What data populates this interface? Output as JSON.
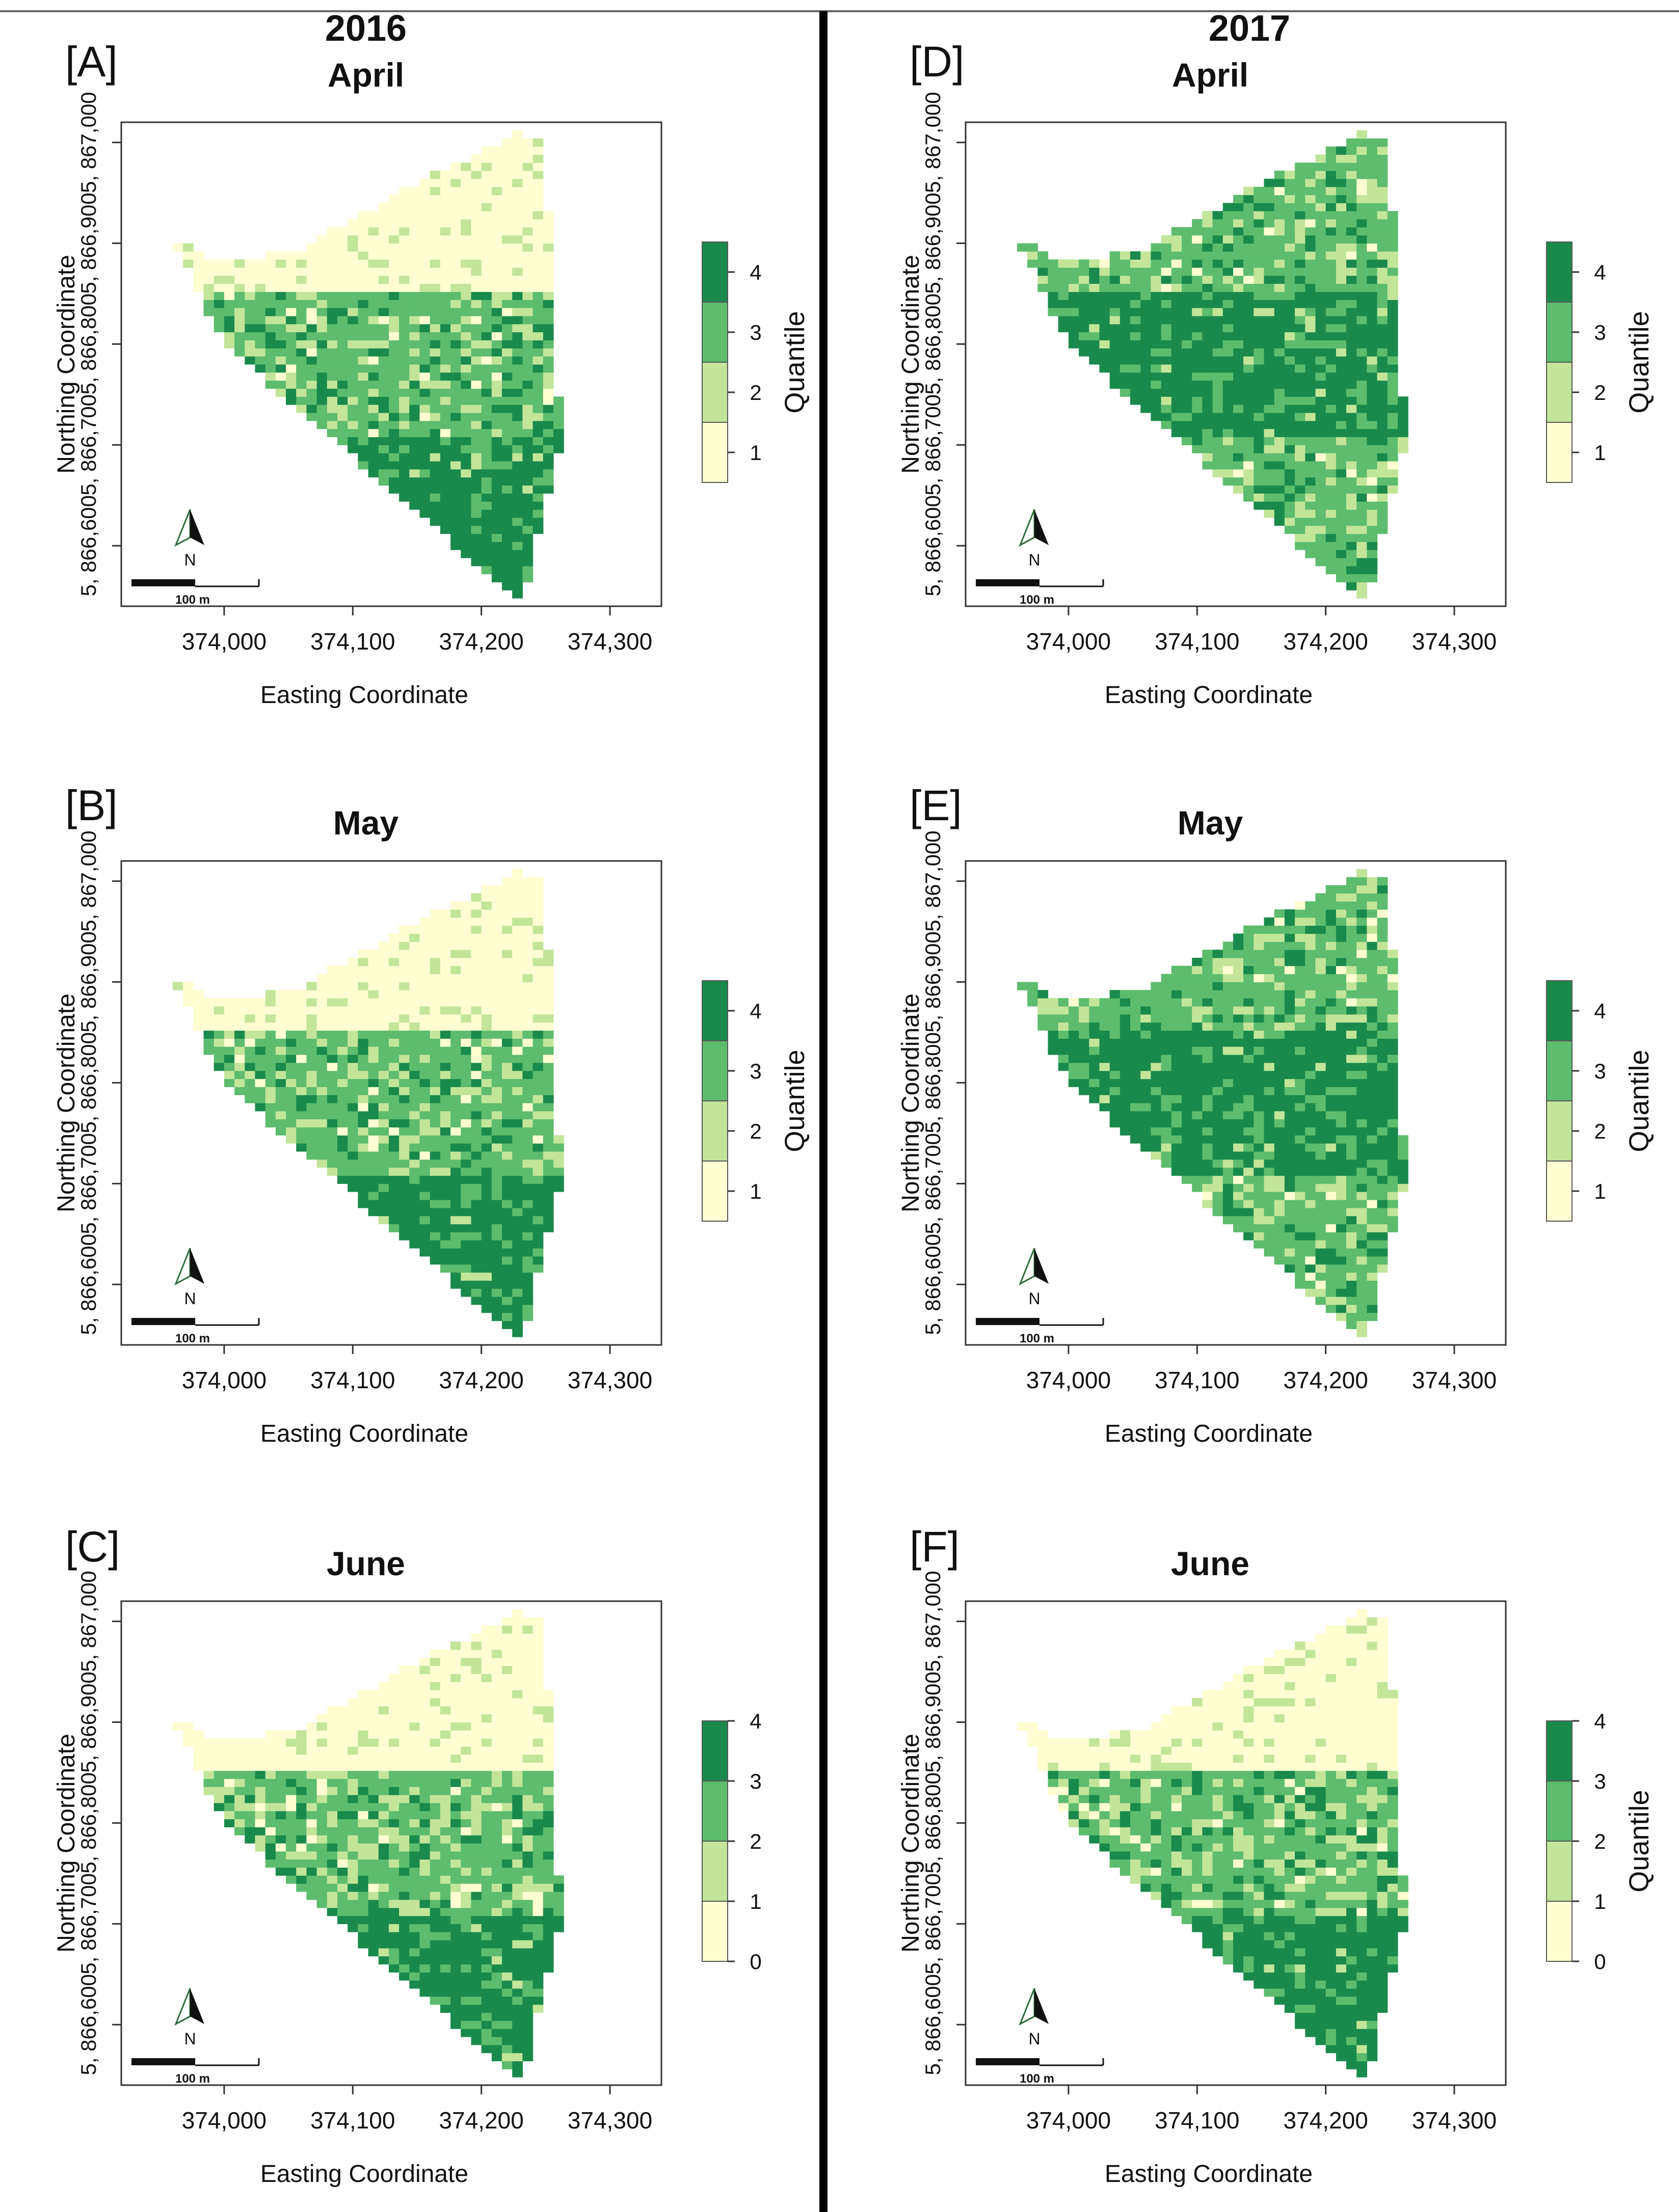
{
  "figure": {
    "years": [
      "2016",
      "2017"
    ],
    "palette": {
      "q1": "#fefed2",
      "q2": "#c2e59a",
      "q3": "#5dbc6e",
      "q4": "#1a8a4c",
      "frame": "#333333",
      "divider": "#000000"
    },
    "north_label": "N",
    "scalebar_label": "100 m"
  },
  "chart_data": [
    {
      "type": "heatmap",
      "panel": "[A]",
      "year": "2016",
      "month": "April",
      "xlabel": "Easting Coordinate",
      "ylabel": "Northing Coordinate",
      "xlim": [
        373920,
        374340
      ],
      "ylim": [
        5866540,
        5867020
      ],
      "x_ticks": [
        374000,
        374100,
        374200,
        374300
      ],
      "x_tick_labels": [
        "374,000",
        "374,100",
        "374,200",
        "374,300"
      ],
      "y_ticks": [
        5866600,
        5866700,
        5866800,
        5866900,
        5867000
      ],
      "y_tick_labels": [
        "5, 866,600",
        "5, 866,700",
        "5, 866,800",
        "5, 866,900",
        "5, 867,000"
      ],
      "legend_title": "Quantile",
      "legend_labels": [
        "1",
        "2",
        "3",
        "4"
      ],
      "dominant_quantile_by_region": {
        "north": 1,
        "middle": 3,
        "south": 4
      }
    },
    {
      "type": "heatmap",
      "panel": "[B]",
      "year": "2016",
      "month": "May",
      "xlabel": "Easting Coordinate",
      "ylabel": "Northing Coordinate",
      "xlim": [
        373920,
        374340
      ],
      "ylim": [
        5866540,
        5867020
      ],
      "x_ticks": [
        374000,
        374100,
        374200,
        374300
      ],
      "x_tick_labels": [
        "374,000",
        "374,100",
        "374,200",
        "374,300"
      ],
      "y_ticks": [
        5866600,
        5866700,
        5866800,
        5866900,
        5867000
      ],
      "y_tick_labels": [
        "5, 866,600",
        "5, 866,700",
        "5, 866,800",
        "5, 866,900",
        "5, 867,000"
      ],
      "legend_title": "Quantile",
      "legend_labels": [
        "1",
        "2",
        "3",
        "4"
      ],
      "dominant_quantile_by_region": {
        "north": 1,
        "middle": 3,
        "south": 4
      }
    },
    {
      "type": "heatmap",
      "panel": "[C]",
      "year": "2016",
      "month": "June",
      "xlabel": "Easting Coordinate",
      "ylabel": "Northing Coordinate",
      "xlim": [
        373920,
        374340
      ],
      "ylim": [
        5866540,
        5867020
      ],
      "x_ticks": [
        374000,
        374100,
        374200,
        374300
      ],
      "x_tick_labels": [
        "374,000",
        "374,100",
        "374,200",
        "374,300"
      ],
      "y_ticks": [
        5866600,
        5866700,
        5866800,
        5866900,
        5867000
      ],
      "y_tick_labels": [
        "5, 866,600",
        "5, 866,700",
        "5, 866,800",
        "5, 866,900",
        "5, 867,000"
      ],
      "legend_title": "",
      "legend_labels": [
        "0",
        "1",
        "2",
        "3",
        "4"
      ],
      "dominant_quantile_by_region": {
        "north": 1,
        "middle": 3,
        "south": 4
      }
    },
    {
      "type": "heatmap",
      "panel": "[D]",
      "year": "2017",
      "month": "April",
      "xlabel": "Easting Coordinate",
      "ylabel": "Northing Coordinate",
      "xlim": [
        373920,
        374340
      ],
      "ylim": [
        5866540,
        5867020
      ],
      "x_ticks": [
        374000,
        374100,
        374200,
        374300
      ],
      "x_tick_labels": [
        "374,000",
        "374,100",
        "374,200",
        "374,300"
      ],
      "y_ticks": [
        5866600,
        5866700,
        5866800,
        5866900,
        5867000
      ],
      "y_tick_labels": [
        "5, 866,600",
        "5, 866,700",
        "5, 866,800",
        "5, 866,900",
        "5, 867,000"
      ],
      "legend_title": "Quantile",
      "legend_labels": [
        "1",
        "2",
        "3",
        "4"
      ],
      "dominant_quantile_by_region": {
        "north": 3,
        "middle": 4,
        "south": 3
      }
    },
    {
      "type": "heatmap",
      "panel": "[E]",
      "year": "2017",
      "month": "May",
      "xlabel": "Easting Coordinate",
      "ylabel": "Northing Coordinate",
      "xlim": [
        373920,
        374340
      ],
      "ylim": [
        5866540,
        5867020
      ],
      "x_ticks": [
        374000,
        374100,
        374200,
        374300
      ],
      "x_tick_labels": [
        "374,000",
        "374,100",
        "374,200",
        "374,300"
      ],
      "y_ticks": [
        5866600,
        5866700,
        5866800,
        5866900,
        5867000
      ],
      "y_tick_labels": [
        "5, 866,600",
        "5, 866,700",
        "5, 866,800",
        "5, 866,900",
        "5, 867,000"
      ],
      "legend_title": "Quantile",
      "legend_labels": [
        "1",
        "2",
        "3",
        "4"
      ],
      "dominant_quantile_by_region": {
        "north": 3,
        "middle": 4,
        "south": 3
      }
    },
    {
      "type": "heatmap",
      "panel": "[F]",
      "year": "2017",
      "month": "June",
      "xlabel": "Easting Coordinate",
      "ylabel": "Northing Coordinate",
      "xlim": [
        373920,
        374340
      ],
      "ylim": [
        5866540,
        5867020
      ],
      "x_ticks": [
        374000,
        374100,
        374200,
        374300
      ],
      "x_tick_labels": [
        "374,000",
        "374,100",
        "374,200",
        "374,300"
      ],
      "y_ticks": [
        5866600,
        5866700,
        5866800,
        5866900,
        5867000
      ],
      "y_tick_labels": [
        "5, 866,600",
        "5, 866,700",
        "5, 866,800",
        "5, 866,900",
        "5, 867,000"
      ],
      "legend_title": "Quantile",
      "legend_labels": [
        "0",
        "1",
        "2",
        "3",
        "4"
      ],
      "dominant_quantile_by_region": {
        "north": 1,
        "middle": 3,
        "south": 4
      }
    }
  ]
}
